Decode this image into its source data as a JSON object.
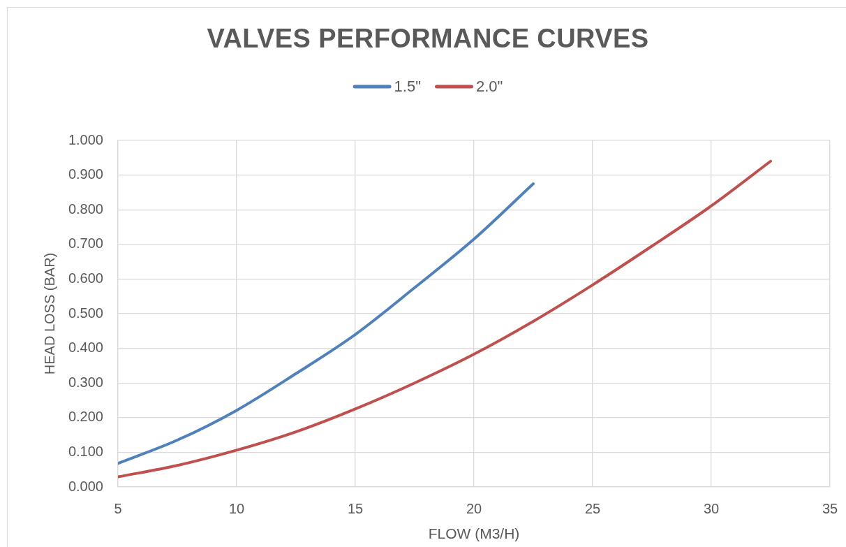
{
  "chart_data": {
    "type": "line",
    "title": "VALVES PERFORMANCE CURVES",
    "xlabel": "FLOW (M3/H)",
    "ylabel": "HEAD LOSS (BAR)",
    "series": [
      {
        "name": "1.5\"",
        "color": "#4f81bd",
        "x": [
          5,
          7.5,
          10,
          12.5,
          15,
          17.5,
          20,
          22.5
        ],
        "values": [
          0.068,
          0.135,
          0.221,
          0.327,
          0.44,
          0.575,
          0.715,
          0.875
        ]
      },
      {
        "name": "2.0\"",
        "color": "#c0504d",
        "x": [
          5,
          7.5,
          10,
          12.5,
          15,
          17.5,
          20,
          22.5,
          25,
          27.5,
          30,
          32.5
        ],
        "values": [
          0.029,
          0.062,
          0.106,
          0.159,
          0.225,
          0.3,
          0.383,
          0.478,
          0.583,
          0.695,
          0.811,
          0.94
        ]
      }
    ],
    "xlim": [
      5,
      35
    ],
    "xticks": [
      5,
      10,
      15,
      20,
      25,
      30,
      35
    ],
    "ylim": [
      0,
      1
    ],
    "yticks": [
      {
        "value": 0,
        "label": "0.000"
      },
      {
        "value": 0.1,
        "label": "0.100"
      },
      {
        "value": 0.2,
        "label": "0.200"
      },
      {
        "value": 0.3,
        "label": "0.300"
      },
      {
        "value": 0.4,
        "label": "0.400"
      },
      {
        "value": 0.5,
        "label": "0.500"
      },
      {
        "value": 0.6,
        "label": "0.600"
      },
      {
        "value": 0.7,
        "label": "0.700"
      },
      {
        "value": 0.8,
        "label": "0.800"
      },
      {
        "value": 0.9,
        "label": "0.900"
      },
      {
        "value": 1,
        "label": "1.000"
      }
    ],
    "grid": true,
    "legend": "top",
    "marker": "none",
    "line_style": "solid"
  }
}
